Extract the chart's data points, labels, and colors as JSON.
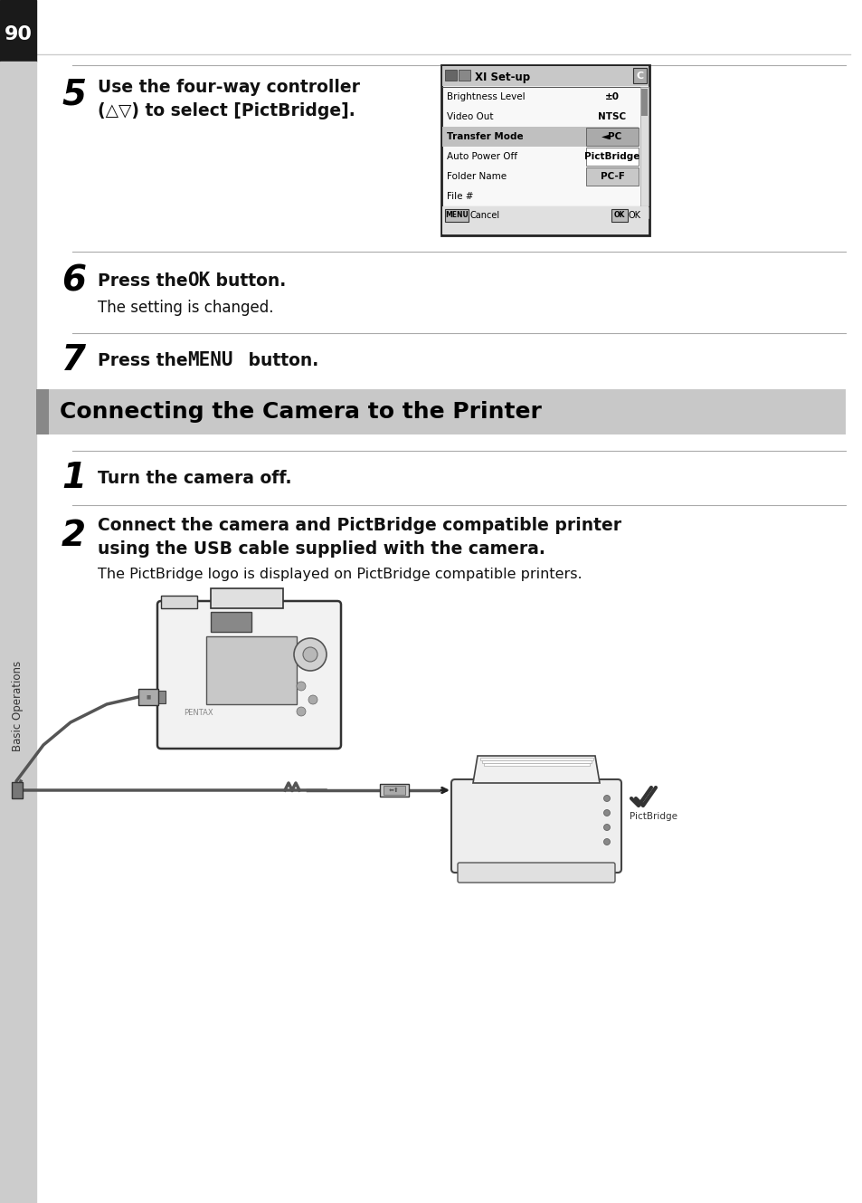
{
  "page_number": "90",
  "background_color": "#ffffff",
  "left_sidebar_dark": "#1a1a1a",
  "left_sidebar_gray": "#cccccc",
  "page_num_text": "90",
  "section_label": "Basic Operations",
  "step5_number": "5",
  "step5_text_line1": "Use the four-way controller",
  "step5_text_line2": "(△▽) to select [PictBridge].",
  "step6_number": "6",
  "step6_sub": "The setting is changed.",
  "step7_number": "7",
  "section_header": "Connecting the Camera to the Printer",
  "section_header_bg": "#c8c8c8",
  "section_header_left_bar": "#888888",
  "step1_number": "1",
  "step1_text": "Turn the camera off.",
  "step2_number": "2",
  "step2_text_line1": "Connect the camera and PictBridge compatible printer",
  "step2_text_line2": "using the USB cable supplied with the camera.",
  "step2_sub": "The PictBridge logo is displayed on PictBridge compatible printers.",
  "menu_title": "XⅠ Set-up",
  "menu_items": [
    {
      "label": "Brightness Level",
      "value": "±0",
      "selected": false,
      "dropdown": false
    },
    {
      "label": "Video Out",
      "value": "NTSC",
      "selected": false,
      "dropdown": false
    },
    {
      "label": "Transfer Mode",
      "value": "◄PC",
      "selected": true,
      "dropdown": true
    },
    {
      "label": "Auto Power Off",
      "value": "PictBridge",
      "selected": false,
      "dropdown": true
    },
    {
      "label": "Folder Name",
      "value": "PC-F",
      "selected": false,
      "dropdown": true
    },
    {
      "label": "File #",
      "value": "",
      "selected": false,
      "dropdown": false
    }
  ],
  "menu_cancel": "MENU Cancel",
  "menu_ok": "OK OK",
  "divider_color": "#aaaaaa",
  "text_color": "#111111"
}
